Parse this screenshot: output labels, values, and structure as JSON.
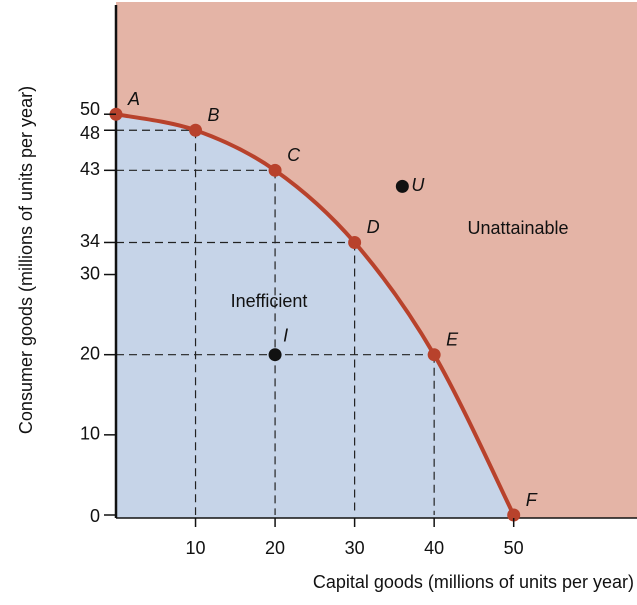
{
  "chart_data": {
    "type": "ppf",
    "xlabel": "Capital goods (millions of units per year)",
    "ylabel": "Consumer goods (millions of units per year)",
    "points": {
      "labels": [
        "A",
        "B",
        "C",
        "D",
        "E",
        "F"
      ],
      "x": [
        0,
        10,
        20,
        30,
        40,
        50
      ],
      "y": [
        50,
        48,
        43,
        34,
        20,
        0
      ],
      "color": "#b8422c"
    },
    "other_points": [
      {
        "label": "U",
        "x": 36,
        "y": 41
      },
      {
        "label": "I",
        "x": 20,
        "y": 20
      }
    ],
    "other_color": "#111111",
    "regions": [
      "Unattainable",
      "Inefficient"
    ],
    "region_colors": {
      "unattainable": "#e4b4a6",
      "attainable": "#c6d4e8"
    },
    "xlim": [
      0,
      65
    ],
    "ylim": [
      0,
      64
    ],
    "xticks": [
      10,
      20,
      30,
      40,
      50
    ],
    "yticks": [
      0,
      10,
      20,
      30,
      34,
      43,
      48,
      50
    ]
  }
}
